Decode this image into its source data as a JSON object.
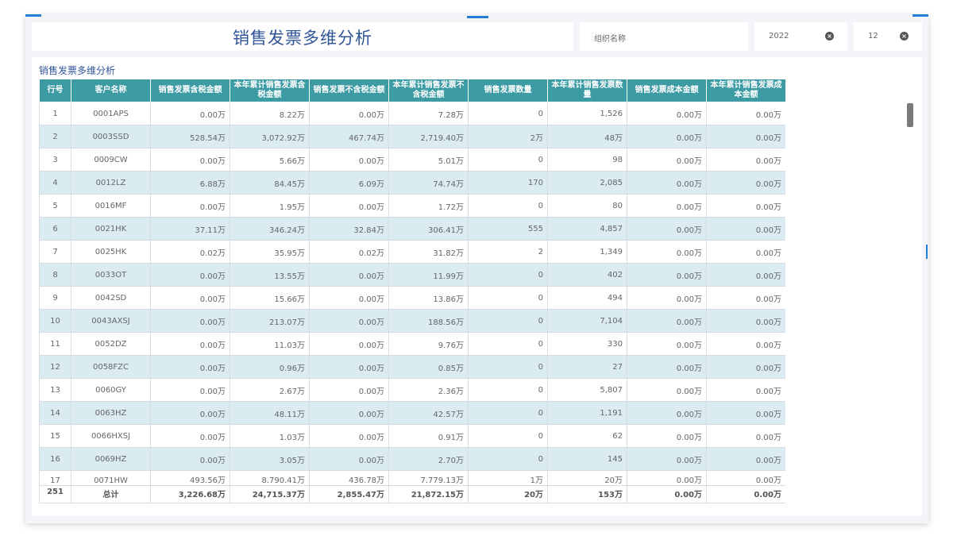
{
  "header": {
    "title": "销售发票多维分析"
  },
  "filters": [
    {
      "text": "组织名称",
      "clearable": false
    },
    {
      "text": "2022",
      "clearable": true
    },
    {
      "text": "12",
      "clearable": true
    }
  ],
  "panel": {
    "title": "销售发票多维分析"
  },
  "table": {
    "columns": [
      "行号",
      "客户名称",
      "销售发票含税金额",
      "本年累计销售发票含税金额",
      "销售发票不含税金额",
      "本年累计销售发票不含税金额",
      "销售发票数量",
      "本年累计销售发票数量",
      "销售发票成本金额",
      "本年累计销售发票成本金额"
    ],
    "rows": [
      [
        "1",
        "0001APS",
        "0.00万",
        "8.22万",
        "0.00万",
        "7.28万",
        "0",
        "1,526",
        "0.00万",
        "0.00万"
      ],
      [
        "2",
        "0003SSD",
        "528.54万",
        "3,072.92万",
        "467.74万",
        "2,719.40万",
        "2万",
        "48万",
        "0.00万",
        "0.00万"
      ],
      [
        "3",
        "0009CW",
        "0.00万",
        "5.66万",
        "0.00万",
        "5.01万",
        "0",
        "98",
        "0.00万",
        "0.00万"
      ],
      [
        "4",
        "0012LZ",
        "6.88万",
        "84.45万",
        "6.09万",
        "74.74万",
        "170",
        "2,085",
        "0.00万",
        "0.00万"
      ],
      [
        "5",
        "0016MF",
        "0.00万",
        "1.95万",
        "0.00万",
        "1.72万",
        "0",
        "80",
        "0.00万",
        "0.00万"
      ],
      [
        "6",
        "0021HK",
        "37.11万",
        "346.24万",
        "32.84万",
        "306.41万",
        "555",
        "4,857",
        "0.00万",
        "0.00万"
      ],
      [
        "7",
        "0025HK",
        "0.02万",
        "35.95万",
        "0.02万",
        "31.82万",
        "2",
        "1,349",
        "0.00万",
        "0.00万"
      ],
      [
        "8",
        "0033OT",
        "0.00万",
        "13.55万",
        "0.00万",
        "11.99万",
        "0",
        "402",
        "0.00万",
        "0.00万"
      ],
      [
        "9",
        "0042SD",
        "0.00万",
        "15.66万",
        "0.00万",
        "13.86万",
        "0",
        "494",
        "0.00万",
        "0.00万"
      ],
      [
        "10",
        "0043AXSJ",
        "0.00万",
        "213.07万",
        "0.00万",
        "188.56万",
        "0",
        "7,104",
        "0.00万",
        "0.00万"
      ],
      [
        "11",
        "0052DZ",
        "0.00万",
        "11.03万",
        "0.00万",
        "9.76万",
        "0",
        "330",
        "0.00万",
        "0.00万"
      ],
      [
        "12",
        "0058FZC",
        "0.00万",
        "0.96万",
        "0.00万",
        "0.85万",
        "0",
        "27",
        "0.00万",
        "0.00万"
      ],
      [
        "13",
        "0060GY",
        "0.00万",
        "2.67万",
        "0.00万",
        "2.36万",
        "0",
        "5,807",
        "0.00万",
        "0.00万"
      ],
      [
        "14",
        "0063HZ",
        "0.00万",
        "48.11万",
        "0.00万",
        "42.57万",
        "0",
        "1,191",
        "0.00万",
        "0.00万"
      ],
      [
        "15",
        "0066HXSJ",
        "0.00万",
        "1.03万",
        "0.00万",
        "0.91万",
        "0",
        "62",
        "0.00万",
        "0.00万"
      ],
      [
        "16",
        "0069HZ",
        "0.00万",
        "3.05万",
        "0.00万",
        "2.70万",
        "0",
        "145",
        "0.00万",
        "0.00万"
      ],
      [
        "17",
        "0071HW",
        "493.56万",
        "8.790.41万",
        "436.78万",
        "7.779.13万",
        "1万",
        "20万",
        "0.00万",
        "0.00万"
      ]
    ],
    "total": [
      "251",
      "总计",
      "3,226.68万",
      "24,715.37万",
      "2,855.47万",
      "21,872.15万",
      "20万",
      "153万",
      "0.00万",
      "0.00万"
    ]
  },
  "colors": {
    "accent": "#1f7fd6",
    "header_bg": "#3d9ba4",
    "alt_row": "#daecf1",
    "title": "#2f5597"
  },
  "icons": {
    "clear": "clear-circle-x-icon"
  }
}
